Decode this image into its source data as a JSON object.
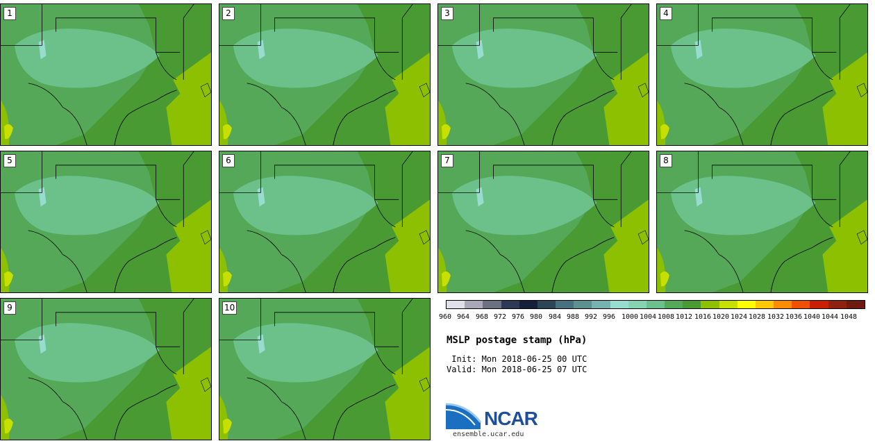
{
  "panels": [
    "1",
    "2",
    "3",
    "4",
    "5",
    "6",
    "7",
    "8",
    "9",
    "10"
  ],
  "colorbar": {
    "colors": [
      "#e0e0e8",
      "#a8a8b8",
      "#6c7080",
      "#2e3a55",
      "#16203a",
      "#2c4658",
      "#48707e",
      "#5c908e",
      "#78b2b0",
      "#98dcd0",
      "#84d4b4",
      "#6cc08a",
      "#54a858",
      "#4a9a34",
      "#8cc000",
      "#c8e000",
      "#ffff00",
      "#ffc800",
      "#ff8c00",
      "#f05000",
      "#c82000",
      "#902010",
      "#6e1a10"
    ],
    "ticks": [
      "960",
      "964",
      "968",
      "972",
      "976",
      "980",
      "984",
      "988",
      "992",
      "996",
      "1000",
      "1004",
      "1008",
      "1012",
      "1016",
      "1020",
      "1024",
      "1028",
      "1032",
      "1036",
      "1040",
      "1044",
      "1048"
    ]
  },
  "title": "MSLP postage stamp (hPa)",
  "init": " Init: Mon 2018-06-25 00 UTC",
  "valid": "Valid: Mon 2018-06-25 07 UTC",
  "logo": {
    "name": "NCAR",
    "site": "ensemble.ucar.edu"
  }
}
